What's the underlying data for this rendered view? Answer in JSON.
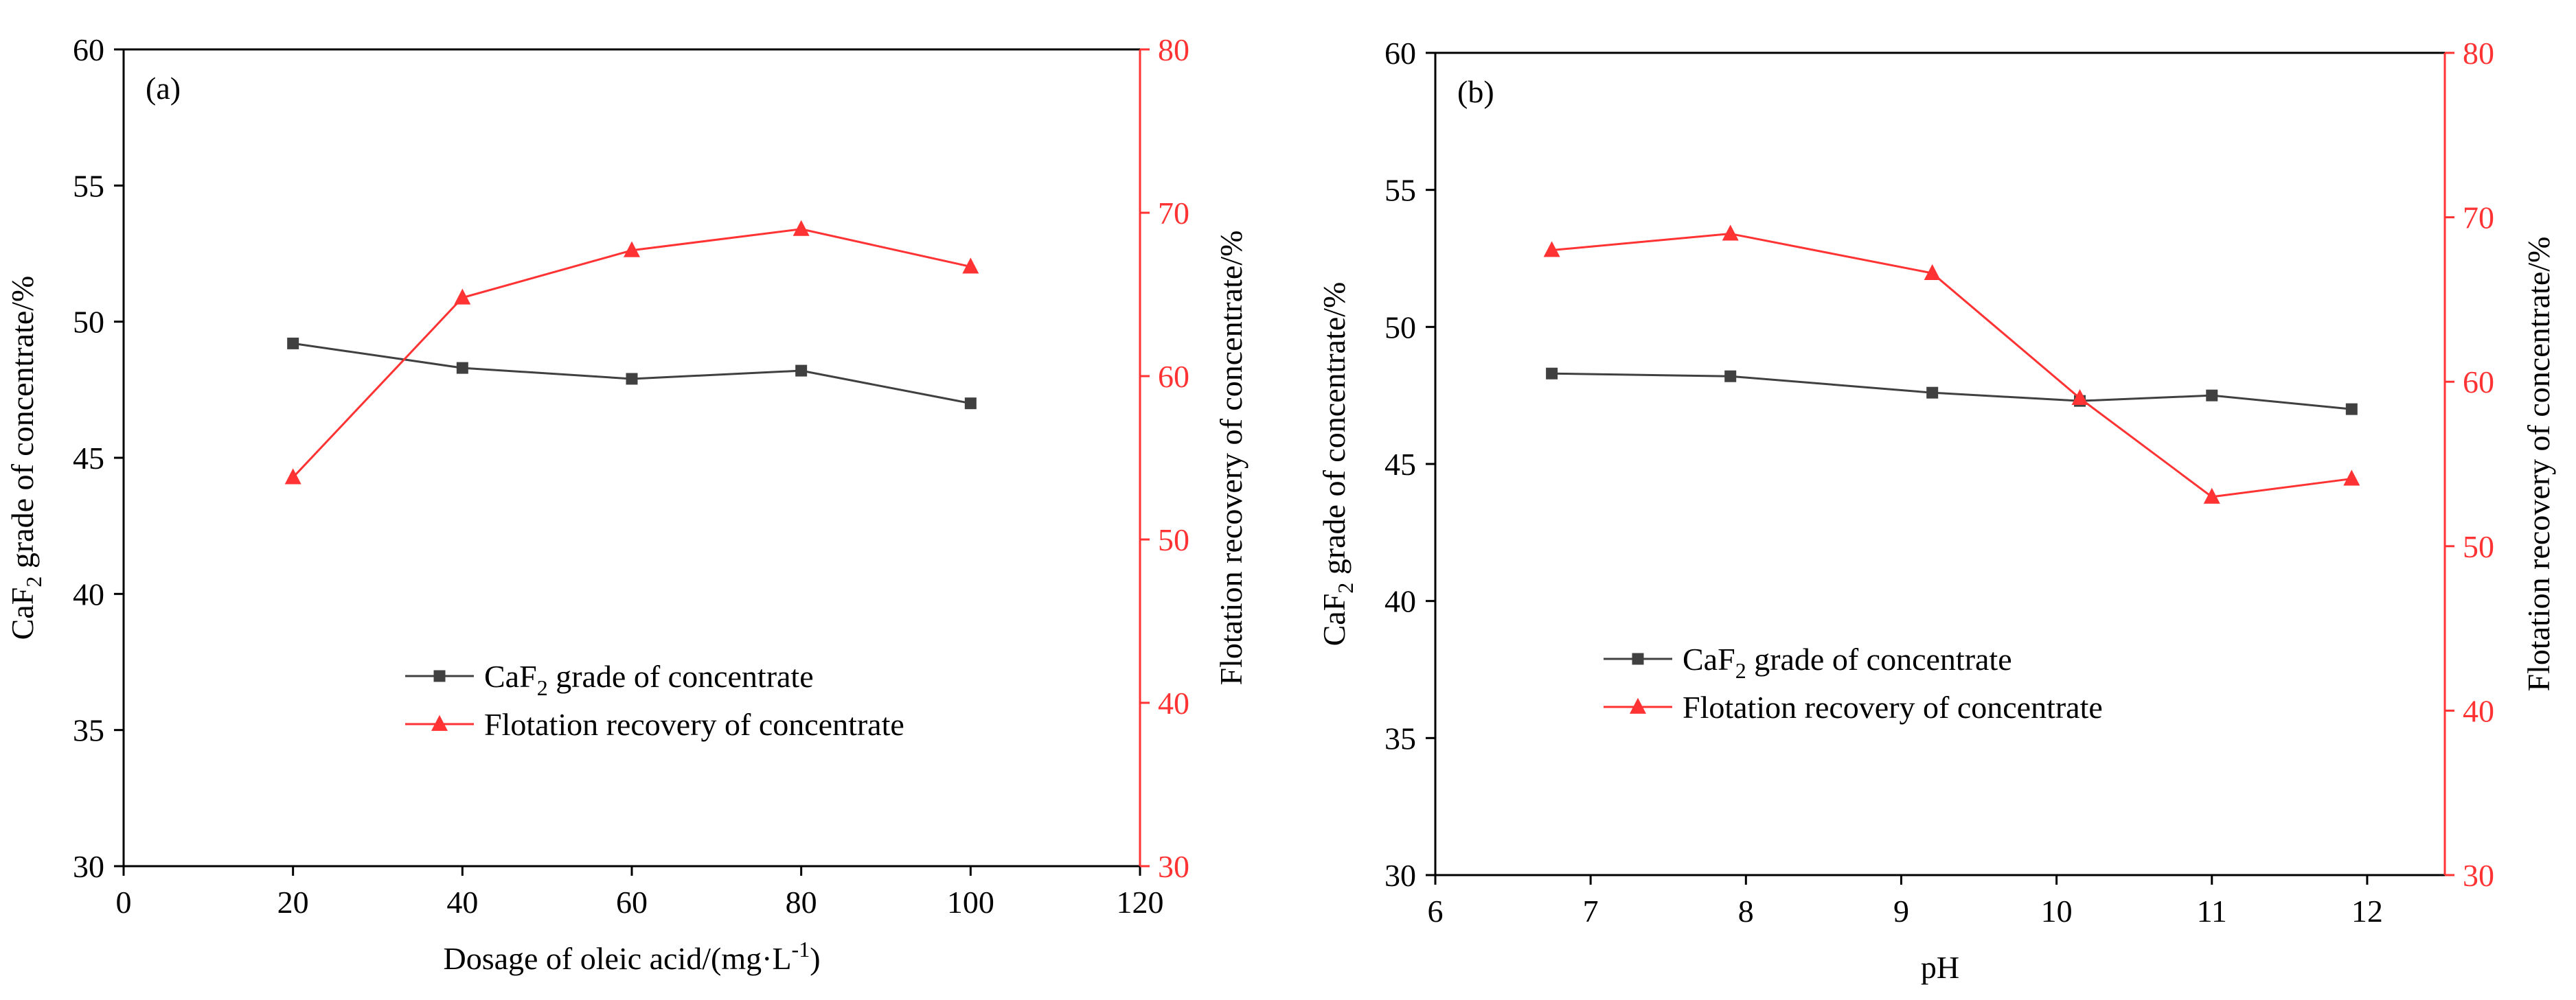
{
  "colors": {
    "grade": "#404040",
    "recovery": "#ff3333",
    "axis_left": "#000000",
    "axis_right": "#ff3333"
  },
  "chart_data": [
    {
      "type": "line",
      "panel_label": "(a)",
      "xlabel": "Dosage of oleic acid/(mg·L",
      "xlabel_sup": "-1",
      "xlabel_end": ")",
      "xlim": [
        0,
        120
      ],
      "xticks": [
        0,
        20,
        40,
        60,
        80,
        100,
        120
      ],
      "ylabel_left": {
        "pre": "CaF",
        "sub": "2",
        "post": " grade of concentrate/%"
      },
      "ylim_left": [
        30,
        60
      ],
      "yticks_left": [
        30,
        35,
        40,
        45,
        50,
        55,
        60
      ],
      "ylabel_right": "Flotation recovery of concentrate/%",
      "ylim_right": [
        30,
        80
      ],
      "yticks_right": [
        30,
        40,
        50,
        60,
        70,
        80
      ],
      "legend_position": "center",
      "series": [
        {
          "name": {
            "pre": "CaF",
            "sub": "2",
            "post": " grade of concentrate"
          },
          "axis": "left",
          "marker": "square",
          "x": [
            20,
            40,
            60,
            80,
            100
          ],
          "y": [
            49.2,
            48.3,
            47.9,
            48.2,
            47.0
          ]
        },
        {
          "name": {
            "pre": "Flotation recovery of concentrate",
            "sub": "",
            "post": ""
          },
          "axis": "right",
          "marker": "triangle",
          "x": [
            20,
            40,
            60,
            80,
            100
          ],
          "y": [
            53.8,
            64.8,
            67.7,
            69.0,
            66.7
          ]
        }
      ]
    },
    {
      "type": "line",
      "panel_label": "(b)",
      "xlabel": "pH",
      "xlabel_sup": "",
      "xlabel_end": "",
      "xlim": [
        6,
        12.5
      ],
      "xticks": [
        6,
        7,
        8,
        9,
        10,
        11,
        12
      ],
      "ylabel_left": {
        "pre": "CaF",
        "sub": "2",
        "post": " grade of concentrate/%"
      },
      "ylim_left": [
        30,
        60
      ],
      "yticks_left": [
        30,
        35,
        40,
        45,
        50,
        55,
        60
      ],
      "ylabel_right": "Flotation recovery of concentrate/%",
      "ylim_right": [
        30,
        80
      ],
      "yticks_right": [
        30,
        40,
        50,
        60,
        70,
        80
      ],
      "legend_position": "center-left",
      "series": [
        {
          "name": {
            "pre": "CaF",
            "sub": "2",
            "post": " grade of concentrate"
          },
          "axis": "left",
          "marker": "square",
          "x": [
            6.75,
            7.9,
            9.2,
            10.15,
            11.0,
            11.9
          ],
          "y": [
            48.3,
            48.2,
            47.6,
            47.3,
            47.5,
            47.0
          ]
        },
        {
          "name": {
            "pre": "Flotation recovery of concentrate",
            "sub": "",
            "post": ""
          },
          "axis": "right",
          "marker": "triangle",
          "x": [
            6.75,
            7.9,
            9.2,
            10.15,
            11.0,
            11.9
          ],
          "y": [
            68.0,
            69.0,
            66.6,
            59.0,
            53.0,
            54.1
          ]
        }
      ]
    }
  ]
}
